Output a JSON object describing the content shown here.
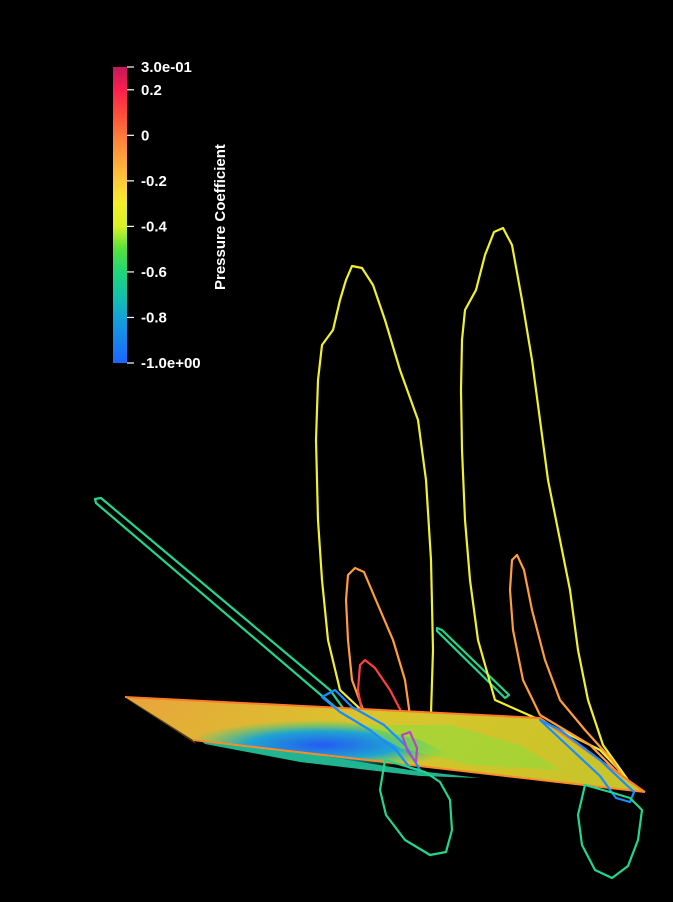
{
  "colorbar": {
    "title": "Pressure Coefficient",
    "range": [
      -1.0,
      0.3
    ],
    "ticks": [
      {
        "value": 0.3,
        "label": "3.0e-01"
      },
      {
        "value": 0.2,
        "label": "0.2"
      },
      {
        "value": 0.0,
        "label": "0"
      },
      {
        "value": -0.2,
        "label": "-0.2"
      },
      {
        "value": -0.4,
        "label": "-0.4"
      },
      {
        "value": -0.6,
        "label": "-0.6"
      },
      {
        "value": -0.8,
        "label": "-0.8"
      },
      {
        "value": -1.0,
        "label": "-1.0e+00"
      }
    ],
    "colormap": [
      {
        "value": 0.3,
        "color": "#c2185b"
      },
      {
        "value": 0.2,
        "color": "#ff1e4e"
      },
      {
        "value": 0.1,
        "color": "#ff4a3a"
      },
      {
        "value": 0.0,
        "color": "#ff7a3a"
      },
      {
        "value": -0.1,
        "color": "#ffa23a"
      },
      {
        "value": -0.2,
        "color": "#ffc93a"
      },
      {
        "value": -0.3,
        "color": "#f5ef2a"
      },
      {
        "value": -0.4,
        "color": "#d8f226"
      },
      {
        "value": -0.5,
        "color": "#55e23c"
      },
      {
        "value": -0.6,
        "color": "#1fd67a"
      },
      {
        "value": -0.7,
        "color": "#12c4a6"
      },
      {
        "value": -0.8,
        "color": "#14a2d8"
      },
      {
        "value": -1.0,
        "color": "#1a66ff"
      }
    ]
  },
  "iso_lines": {
    "yellow": "#f0f02c",
    "orange": "#ff9d3a",
    "red": "#ff4040",
    "green": "#23d68a",
    "blue": "#1a8cff"
  },
  "surface": {
    "base": "#dcc226",
    "edge": "#ff7a2a",
    "dark_side": "#5a4a12",
    "low": "#1a66ff",
    "mid": "#23c9a0"
  }
}
